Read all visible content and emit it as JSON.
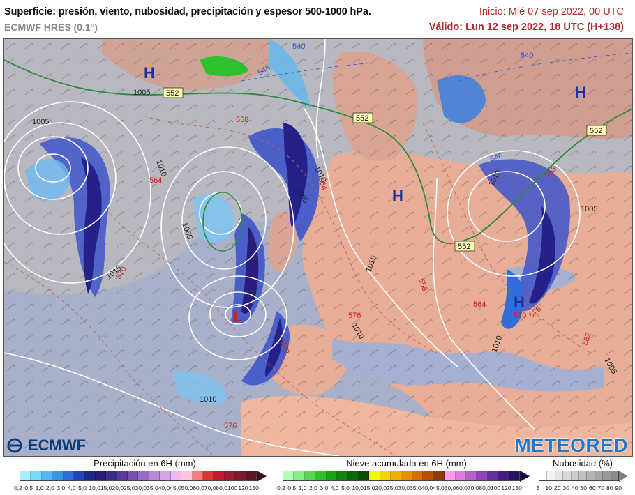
{
  "header": {
    "title": "Superficie: presión, viento, nubosidad, precipitación y espesor 500-1000 hPa.",
    "model": "ECMWF HRES (0.1°)",
    "init": "Inicio: Mié 07 sep 2022, 00 UTC",
    "valid": "Válido: Lun 12 sep 2022, 18 UTC (H+138)"
  },
  "map": {
    "pressure_centers": [
      {
        "label": "H",
        "color": "#1a2fa8"
      },
      {
        "label": "H",
        "color": "#1a2fa8"
      },
      {
        "label": "H",
        "color": "#1a2fa8"
      },
      {
        "label": "H",
        "color": "#1a2fa8"
      },
      {
        "label": "L",
        "color": "#d21c1c"
      }
    ],
    "isobar_labels": [
      "1005",
      "1010",
      "1005",
      "1015",
      "1010",
      "1005",
      "1015",
      "1010",
      "1010",
      "1010",
      "1005",
      "1005",
      "1005",
      "1010"
    ],
    "thickness_labels_red": [
      "558",
      "564",
      "570",
      "576",
      "558",
      "564",
      "570",
      "576",
      "564",
      "558",
      "582",
      "576",
      "570"
    ],
    "thickness_labels_blue": [
      "540",
      "546",
      "540",
      "546"
    ],
    "boxed_552": [
      "552",
      "552",
      "552",
      "552"
    ]
  },
  "branding": {
    "left": "ECMWF",
    "right": "METEORED"
  },
  "legends": {
    "precip": {
      "title": "Precipitación en 6H (mm)",
      "colors": [
        "#a8f0ff",
        "#7ad8ff",
        "#52b8f5",
        "#3b93ea",
        "#2f6fdc",
        "#2244b8",
        "#1b2a8a",
        "#2a1d7a",
        "#3f2a8c",
        "#5a3a9e",
        "#7a52b4",
        "#9a6ac8",
        "#bb85d8",
        "#d9a2e6",
        "#f0b8f0",
        "#ffc3da",
        "#ff7b7b",
        "#e03434",
        "#c01b2b",
        "#9e1b33",
        "#7c1a2c",
        "#5e1724"
      ],
      "ticks": [
        "0,2",
        "0,5",
        "1,0",
        "2,0",
        "3,0",
        "4,0",
        "5,0",
        "10,0",
        "15,0",
        "20,0",
        "25,0",
        "30,0",
        "35,0",
        "40,0",
        "45,0",
        "50,0",
        "60,0",
        "70,0",
        "80,0",
        "100",
        "120",
        "150"
      ]
    },
    "snow": {
      "title": "Nieve acumulada en 6H (mm)",
      "colors": [
        "#b6ffb6",
        "#86f086",
        "#56d856",
        "#2ec02e",
        "#18a318",
        "#0f860f",
        "#0a690a",
        "#0a4e0a",
        "#f6f600",
        "#f4d400",
        "#f2b000",
        "#e88e00",
        "#d66e00",
        "#b85200",
        "#8f3a0e",
        "#ff9cf0",
        "#e07ae0",
        "#b85cd0",
        "#8c44b8",
        "#6630a0",
        "#441e82",
        "#28125c"
      ],
      "ticks": [
        "0,2",
        "0,5",
        "1,0",
        "2,0",
        "3,0",
        "4,0",
        "5,0",
        "10,0",
        "15,0",
        "20,0",
        "25,0",
        "30,0",
        "35,0",
        "40,0",
        "45,0",
        "50,0",
        "60,0",
        "70,0",
        "80,0",
        "100",
        "120",
        "150"
      ]
    },
    "cloud": {
      "title": "Nubosidad (%)",
      "colors": [
        "#ffffff",
        "#f2f2f2",
        "#e6e6e6",
        "#d9d9d9",
        "#cccccc",
        "#bfbfbf",
        "#b3b3b3",
        "#a6a6a6",
        "#999999",
        "#8c8c8c"
      ],
      "ticks": [
        "5",
        "10",
        "20",
        "30",
        "40",
        "50",
        "60",
        "70",
        "80",
        "90"
      ]
    }
  }
}
